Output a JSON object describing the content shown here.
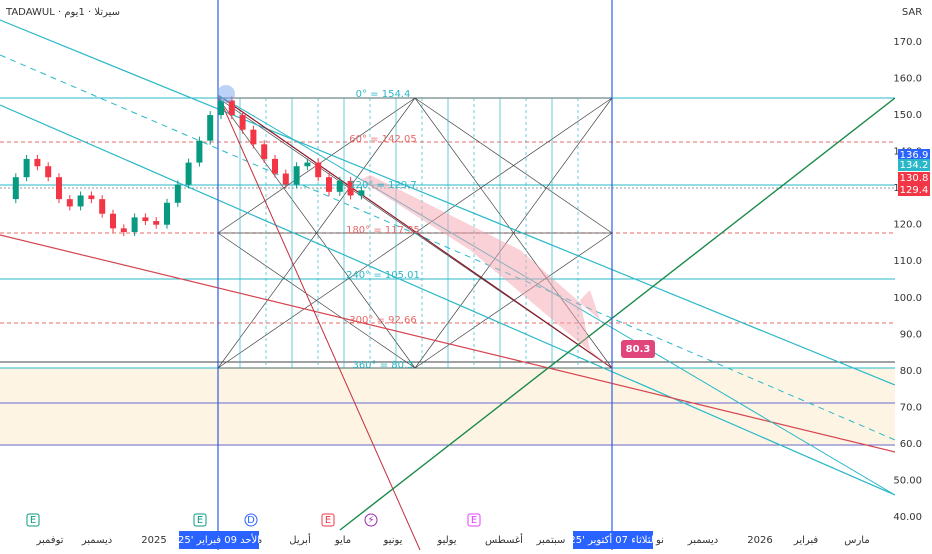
{
  "header": {
    "symbol": "TADAWUL · سيرتلا · 1يوم",
    "currency": "SAR"
  },
  "price_axis": {
    "labels": [
      "170.0",
      "160.0",
      "150.0",
      "140.0",
      "130.0",
      "120.0",
      "110.0",
      "100.0",
      "90.0",
      "80.0",
      "70.0",
      "60.0",
      "50.00",
      "40.00"
    ]
  },
  "price_tags": [
    "136.9",
    "134.2",
    "130.8",
    "129.4"
  ],
  "time_axis": {
    "labels": [
      "توفمبر",
      "ديسمبر",
      "2025",
      "ما",
      "أبريل",
      "مايو",
      "يونيو",
      "يوليو",
      "أغسطس",
      "سبتمبر",
      "نو",
      "ديسمبر",
      "2026",
      "فبراير",
      "مارس"
    ],
    "crosshair_start": "الأحد 09 فبراير '25",
    "crosshair_end": "الثلاثاء 07 أكتوبر '25"
  },
  "gann_levels": [
    "0° = 154.4",
    "60° = 142.05",
    "120° = 129.7",
    "180° = 117.35",
    "240° = 105.01",
    "300° = 92.66",
    "360° = 80.3"
  ],
  "target_label": "80.3",
  "events": [
    "E",
    "E",
    "D",
    "E",
    "⚡",
    "E"
  ],
  "closes": [
    127,
    133,
    138,
    136,
    133,
    127,
    125,
    128,
    127,
    123,
    119,
    118,
    122,
    121,
    120,
    126,
    131,
    137,
    143,
    150,
    154,
    150,
    146,
    142,
    138,
    134,
    131,
    136,
    137,
    133,
    129,
    132,
    128,
    129.4
  ]
}
